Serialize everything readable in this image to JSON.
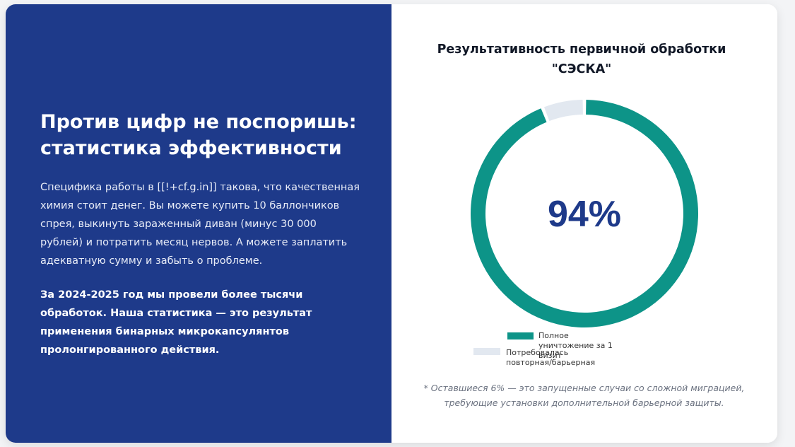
{
  "left": {
    "heading_line1": "Против цифр не поспоришь:",
    "heading_line2": "статистика эффективности",
    "paragraph1": "Специфика работы в [[!+cf.g.in]] такова, что качественная химия стоит денег. Вы можете купить 10 баллончиков спрея, выкинуть зараженный диван (минус 30 000 рублей) и потратить месяц нервов. А можете заплатить адекватную сумму и забыть о проблеме.",
    "paragraph2": "За 2024-2025 год мы провели более тысячи обработок. Наша статистика — это результат применения бинарных микрокапсулянтов пролонгированного действия."
  },
  "chart_data": {
    "type": "pie",
    "style": "doughnut",
    "title": "Результативность первичной обработки \"СЭСКА\"",
    "center_label": "94%",
    "legend_position": "bottom",
    "slices": [
      {
        "label_lines": [
          "Полное",
          "уничтожение за 1",
          "визит"
        ],
        "value": 94,
        "color": "#0d9488"
      },
      {
        "label_lines": [
          "Потребовалась",
          "повторная/барьерная"
        ],
        "value": 6,
        "color": "#e2e8f0"
      }
    ]
  },
  "footnote": {
    "line1": "* Оставшиеся 6% — это запущенные случаи со сложной миграцией,",
    "line2": "требующие установки дополнительной барьерной защиты."
  },
  "colors": {
    "left_background": "#1e3a8a",
    "center_value": "#1e3a8a"
  }
}
